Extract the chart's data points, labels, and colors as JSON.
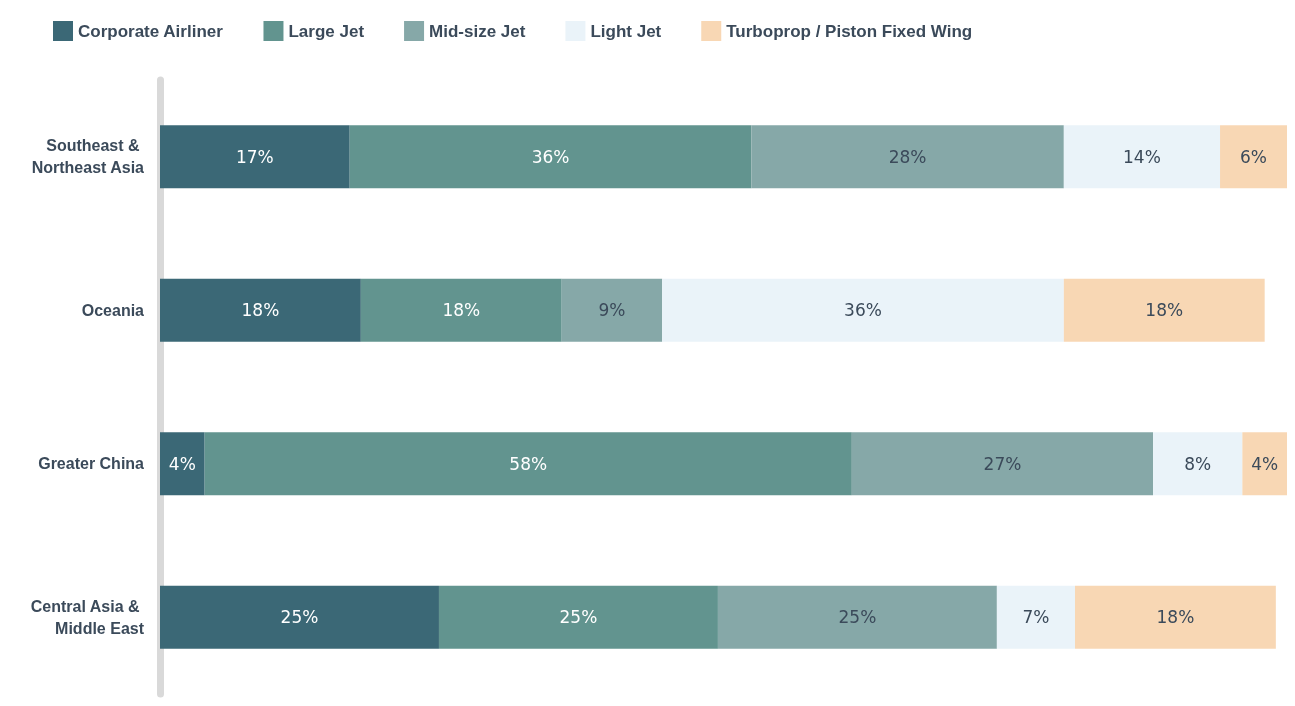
{
  "chart_data": {
    "type": "bar",
    "orientation": "horizontal",
    "stacked": true,
    "categories": [
      "Southeast & Northeast Asia",
      "Oceania",
      "Greater China",
      "Central Asia & Middle East"
    ],
    "series": [
      {
        "name": "Corporate Airliner",
        "color": "#3b6876",
        "values": [
          17,
          18,
          4,
          25
        ],
        "value_labels": [
          "17%",
          "18%",
          "4%",
          "25%"
        ]
      },
      {
        "name": "Large Jet",
        "color": "#62948f",
        "values": [
          36,
          18,
          58,
          25
        ],
        "value_labels": [
          "36%",
          "18%",
          "58%",
          "25%"
        ]
      },
      {
        "name": "Mid-size Jet",
        "color": "#86a8a8",
        "values": [
          28,
          9,
          27,
          25
        ],
        "value_labels": [
          "28%",
          "9%",
          "27%",
          "25%"
        ]
      },
      {
        "name": "Light Jet",
        "color": "#eaf3f9",
        "values": [
          14,
          36,
          8,
          7
        ],
        "value_labels": [
          "14%",
          "36%",
          "8%",
          "7%"
        ]
      },
      {
        "name": "Turboprop / Piston Fixed Wing",
        "color": "#f8d7b4",
        "values": [
          6,
          18,
          4,
          18
        ],
        "value_labels": [
          "6%",
          "18%",
          "4%",
          "18%"
        ]
      }
    ],
    "xlim": [
      0,
      101
    ],
    "legend": "top left"
  }
}
